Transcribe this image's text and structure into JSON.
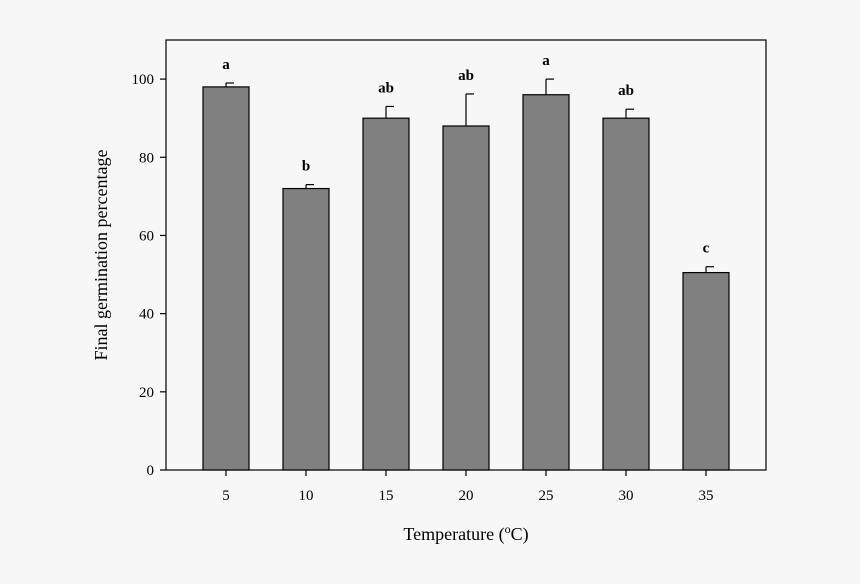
{
  "chart_data": {
    "type": "bar",
    "title": "",
    "xlabel": "Temperature (",
    "xlabel_sup": "o",
    "xlabel_tail": "C)",
    "ylabel": "Final germination percentage",
    "categories": [
      "5",
      "10",
      "15",
      "20",
      "25",
      "30",
      "35"
    ],
    "values": [
      98,
      72,
      90,
      88,
      96,
      90,
      50.5
    ],
    "error_upper": [
      1.0,
      1.0,
      3.0,
      8.2,
      4.0,
      2.3,
      1.5
    ],
    "significance": [
      "a",
      "b",
      "ab",
      "ab",
      "a",
      "ab",
      "c"
    ],
    "ylim": [
      0,
      110
    ],
    "yticks": [
      0,
      20,
      40,
      60,
      80,
      100
    ],
    "bar_color": "#808080",
    "grid": false
  }
}
